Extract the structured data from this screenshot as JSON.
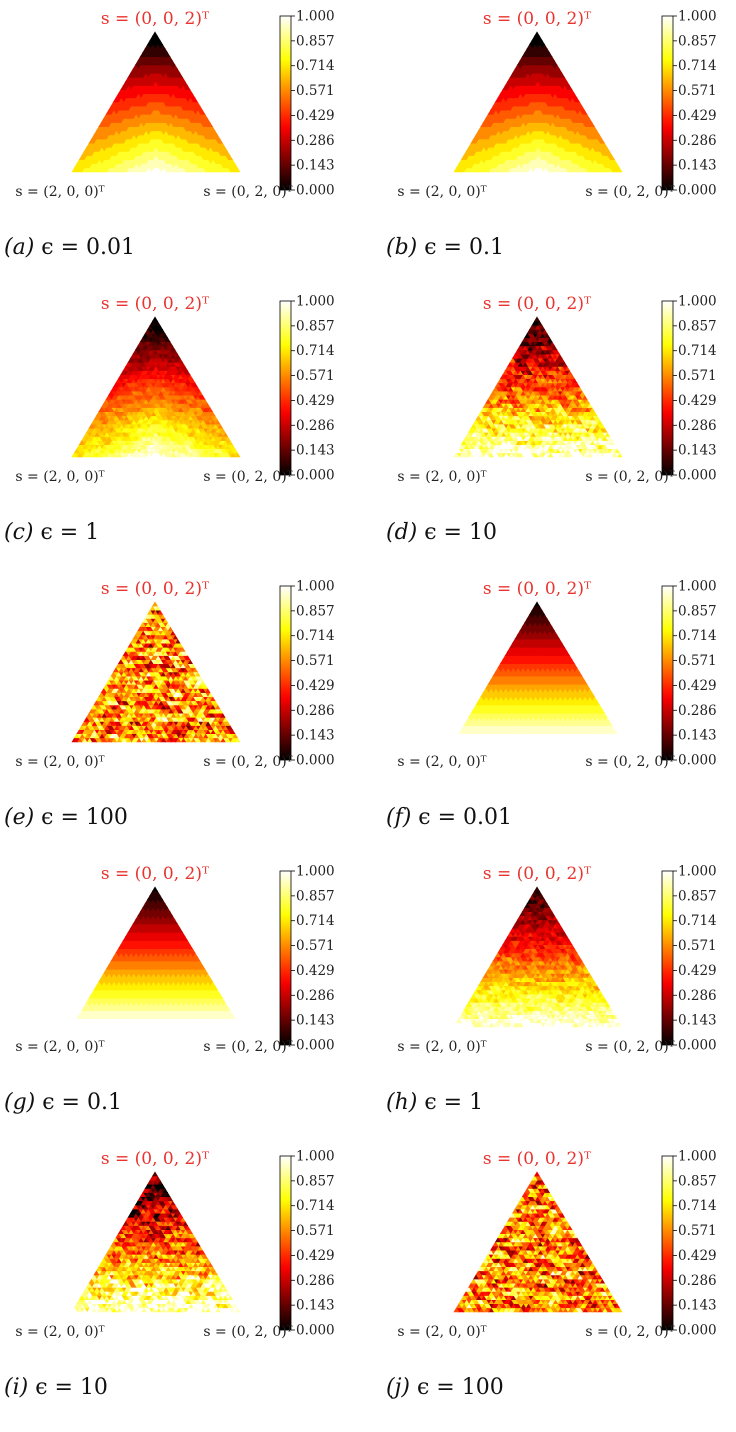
{
  "figure": {
    "colorbar": {
      "colormap": "hot",
      "ticks": [
        "1.000",
        "0.857",
        "0.714",
        "0.571",
        "0.429",
        "0.286",
        "0.143",
        "0.000"
      ]
    },
    "vertex_labels": {
      "top": "s = (0, 0, 2)ᵀ",
      "left": "s = (2, 0, 0)ᵀ",
      "right": "s = (0, 2, 0)ᵀ"
    },
    "colors": {
      "top_label": "#e8332e",
      "axis_text": "#222222"
    }
  },
  "chart_data": [
    {
      "type": "heatmap",
      "panel": "(a)",
      "caption": "ϵ = 0.01",
      "pattern": "smooth-rings",
      "noise": 0.0
    },
    {
      "type": "heatmap",
      "panel": "(b)",
      "caption": "ϵ = 0.1",
      "pattern": "smooth-rings",
      "noise": 0.0
    },
    {
      "type": "heatmap",
      "panel": "(c)",
      "caption": "ϵ = 1",
      "pattern": "smooth-rings",
      "noise": 0.15
    },
    {
      "type": "heatmap",
      "panel": "(d)",
      "caption": "ϵ = 10",
      "pattern": "noisy-gradient",
      "noise": 0.45
    },
    {
      "type": "heatmap",
      "panel": "(e)",
      "caption": "ϵ = 100",
      "pattern": "noise",
      "noise": 1.0
    },
    {
      "type": "heatmap",
      "panel": "(f)",
      "caption": "ϵ = 0.01",
      "pattern": "gradient",
      "noise": 0.0
    },
    {
      "type": "heatmap",
      "panel": "(g)",
      "caption": "ϵ = 0.1",
      "pattern": "gradient",
      "noise": 0.0
    },
    {
      "type": "heatmap",
      "panel": "(h)",
      "caption": "ϵ = 1",
      "pattern": "noisy-gradient",
      "noise": 0.25
    },
    {
      "type": "heatmap",
      "panel": "(i)",
      "caption": "ϵ = 10",
      "pattern": "noisy-gradient",
      "noise": 0.6
    },
    {
      "type": "heatmap",
      "panel": "(j)",
      "caption": "ϵ = 100",
      "pattern": "noise",
      "noise": 1.0
    }
  ]
}
